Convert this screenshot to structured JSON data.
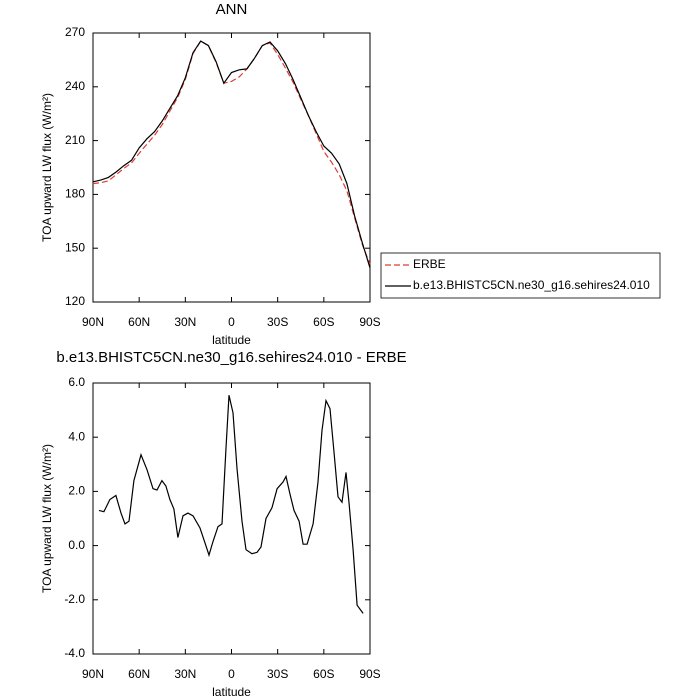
{
  "chart_data": [
    {
      "type": "line",
      "title": "ANN",
      "xlabel": "latitude",
      "ylabel": "TOA upward LW flux (W/m²)",
      "x": [
        90,
        85,
        80,
        75,
        70,
        65,
        60,
        55,
        50,
        45,
        40,
        35,
        30,
        25,
        20,
        15,
        10,
        5,
        0,
        -5,
        -10,
        -15,
        -20,
        -25,
        -30,
        -35,
        -40,
        -45,
        -50,
        -55,
        -60,
        -65,
        -70,
        -75,
        -80,
        -85,
        -90
      ],
      "series": [
        {
          "name": "ERBE",
          "color": "#e03c31",
          "line_style": "dashed",
          "values": [
            186,
            186.5,
            187.5,
            191,
            194.5,
            197.5,
            203,
            208,
            213,
            219,
            226.5,
            234,
            244,
            258.5,
            265.5,
            263,
            253.5,
            242,
            243,
            245.5,
            250,
            256,
            263,
            264.5,
            258,
            250.5,
            242.5,
            233,
            224,
            214,
            204,
            198,
            191,
            182,
            167,
            152,
            141
          ]
        },
        {
          "name": "b.e13.BHISTC5CN.ne30_g16.sehires24.010",
          "color": "#000000",
          "line_style": "solid",
          "values": [
            187,
            188,
            189.5,
            192.5,
            196,
            199,
            206,
            211,
            215,
            221,
            228,
            235,
            245,
            259,
            265.5,
            263,
            254,
            242,
            248,
            249.5,
            250,
            256,
            263,
            265,
            260,
            253,
            244,
            234,
            224,
            215,
            207,
            203,
            197,
            186,
            168,
            153,
            139
          ]
        }
      ],
      "xlim": [
        90,
        -90
      ],
      "xticks": [
        {
          "value": 90,
          "label": "90N"
        },
        {
          "value": 60,
          "label": "60N"
        },
        {
          "value": 30,
          "label": "30N"
        },
        0,
        {
          "value": -30,
          "label": "30S"
        },
        {
          "value": -60,
          "label": "60S"
        },
        {
          "value": -90,
          "label": "90S"
        }
      ],
      "ylim": [
        120,
        270
      ],
      "yticks": [
        120,
        150,
        180,
        210,
        240,
        270
      ],
      "legend": "right"
    },
    {
      "type": "line",
      "title": "b.e13.BHISTC5CN.ne30_g16.sehires24.010 - ERBE",
      "xlabel": "latitude",
      "ylabel": "TOA upward LW flux (W/m²)",
      "x": [
        86.1,
        82.9,
        79,
        75.1,
        71.8,
        69.2,
        66.6,
        63.4,
        58.8,
        54.9,
        51,
        48.4,
        45.2,
        42.6,
        40,
        37.4,
        34.8,
        31.5,
        28.3,
        25,
        20.5,
        17.2,
        14.6,
        12,
        8.8,
        6.2,
        3.6,
        1.6,
        -1,
        -3.6,
        -6.8,
        -9.4,
        -13.3,
        -16.6,
        -19.2,
        -22.4,
        -26.3,
        -29.6,
        -33.5,
        -35.4,
        -38,
        -40.6,
        -43.9,
        -46.5,
        -49.1,
        -53,
        -56.2,
        -58.8,
        -61.4,
        -64,
        -66.6,
        -69.2,
        -71.8,
        -74.4,
        -76.4,
        -79,
        -81.6,
        -85.5
      ],
      "series": [
        {
          "color": "#000000",
          "line_style": "solid",
          "values": [
            1.3,
            1.25,
            1.7,
            1.85,
            1.2,
            0.8,
            0.9,
            2.4,
            3.35,
            2.8,
            2.1,
            2.05,
            2.4,
            2.2,
            1.7,
            1.35,
            0.3,
            1.1,
            1.2,
            1.1,
            0.65,
            0.1,
            -0.35,
            0.15,
            0.7,
            0.8,
            3.6,
            5.55,
            4.9,
            2.85,
            0.9,
            -0.15,
            -0.3,
            -0.25,
            -0.05,
            1.0,
            1.4,
            2.1,
            2.35,
            2.55,
            1.9,
            1.3,
            0.9,
            0.05,
            0.05,
            0.8,
            2.35,
            4.25,
            5.35,
            5.05,
            3.45,
            1.8,
            1.6,
            2.7,
            1.55,
            -0.15,
            -2.2,
            -2.5
          ]
        }
      ],
      "xlim": [
        90,
        -90
      ],
      "xticks": [
        {
          "value": 90,
          "label": "90N"
        },
        {
          "value": 60,
          "label": "60N"
        },
        {
          "value": 30,
          "label": "30N"
        },
        0,
        {
          "value": -30,
          "label": "30S"
        },
        {
          "value": -60,
          "label": "60S"
        },
        {
          "value": -90,
          "label": "90S"
        }
      ],
      "ylim": [
        -4,
        6
      ],
      "yticks": [
        {
          "value": -4,
          "label": "-4.0"
        },
        {
          "value": -2,
          "label": "-2.0"
        },
        {
          "value": 0,
          "label": "0.0"
        },
        {
          "value": 2,
          "label": "2.0"
        },
        {
          "value": 4,
          "label": "4.0"
        },
        {
          "value": 6,
          "label": "6.0"
        }
      ]
    }
  ]
}
